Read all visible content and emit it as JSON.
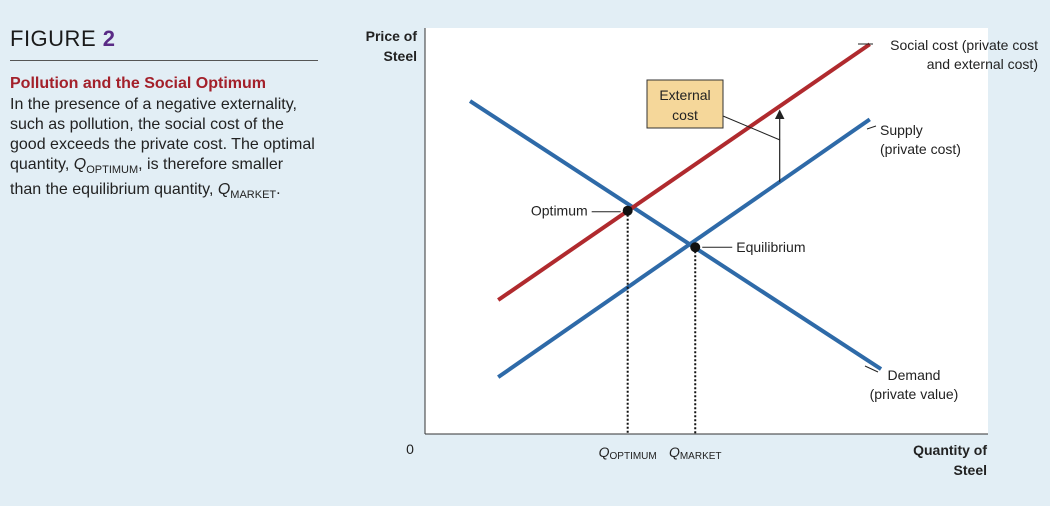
{
  "figure": {
    "label": "FIGURE",
    "number": "2",
    "title": "Pollution and the Social Optimum",
    "body_part1": "In the presence of a negative externality, such as pollution, the social cost of the good exceeds the private cost. The optimal quantity,",
    "q_symbol": "Q",
    "q_optimum_sub": "OPTIMUM",
    "body_part2": ", is therefore smaller than the equilibrium quantity,",
    "q_market_sub": "MARKET",
    "body_end": "."
  },
  "chart_data": {
    "type": "line",
    "ylabel": [
      "Price of",
      "Steel"
    ],
    "xlabel": [
      "Quantity of",
      "Steel"
    ],
    "origin_label": "0",
    "xlim": [
      0,
      100
    ],
    "ylim": [
      0,
      100
    ],
    "series": [
      {
        "name": "Demand",
        "label": [
          "Demand",
          "(private value)"
        ],
        "color": "#2e6aa8",
        "points": [
          [
            8,
            82
          ],
          [
            81,
            16
          ]
        ]
      },
      {
        "name": "Supply",
        "label": [
          "Supply",
          "(private cost)"
        ],
        "color": "#2e6aa8",
        "points": [
          [
            13,
            14
          ],
          [
            79,
            77.5
          ]
        ]
      },
      {
        "name": "Social cost",
        "label": [
          "Social cost (private cost",
          "and external cost)"
        ],
        "color": "#b02a2e",
        "points": [
          [
            13,
            33
          ],
          [
            79,
            96
          ]
        ]
      }
    ],
    "annotations": {
      "optimum": {
        "label": "Optimum",
        "point": [
          36,
          55
        ]
      },
      "equilibrium": {
        "label": "Equilibrium",
        "point": [
          48,
          46
        ]
      },
      "external_cost": {
        "label": [
          "External",
          "cost"
        ]
      }
    },
    "x_ticks": [
      {
        "symbol": "Q",
        "sub": "OPTIMUM",
        "x": 36
      },
      {
        "symbol": "Q",
        "sub": "MARKET",
        "x": 48
      }
    ]
  }
}
